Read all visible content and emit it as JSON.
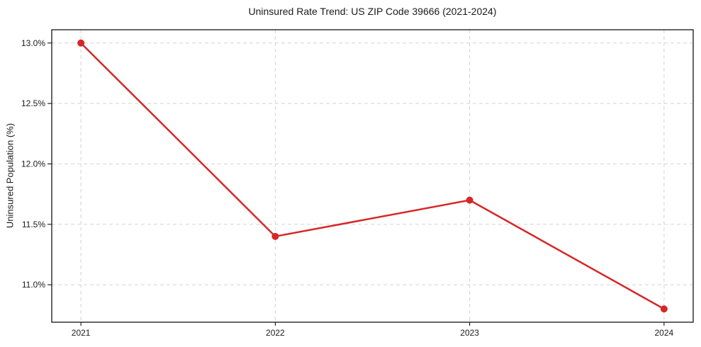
{
  "figure": {
    "title": "Uninsured Rate Trend: US ZIP Code 39666 (2021-2024)"
  },
  "chart_data": {
    "type": "line",
    "title": "Uninsured Rate Trend: US ZIP Code 39666 (2021-2024)",
    "xlabel": "",
    "ylabel": "Uninsured Population (%)",
    "x": [
      2021,
      2022,
      2023,
      2024
    ],
    "x_tick_labels": [
      "2021",
      "2022",
      "2023",
      "2024"
    ],
    "series": [
      {
        "name": "Uninsured rate",
        "values": [
          13.0,
          11.4,
          11.7,
          10.8
        ]
      }
    ],
    "y_ticks": [
      11.0,
      11.5,
      12.0,
      12.5,
      13.0
    ],
    "y_tick_labels": [
      "11.0%",
      "11.5%",
      "12.0%",
      "12.5%",
      "13.0%"
    ],
    "xlim": [
      2020.85,
      2024.15
    ],
    "ylim": [
      10.69,
      13.11
    ],
    "grid": true,
    "grid_style": "dashed",
    "legend": false,
    "line_color": "#d62728",
    "marker": "circle",
    "marker_color": "#d62728",
    "grid_color": "#d3d3d3",
    "spine_color": "#000000"
  }
}
